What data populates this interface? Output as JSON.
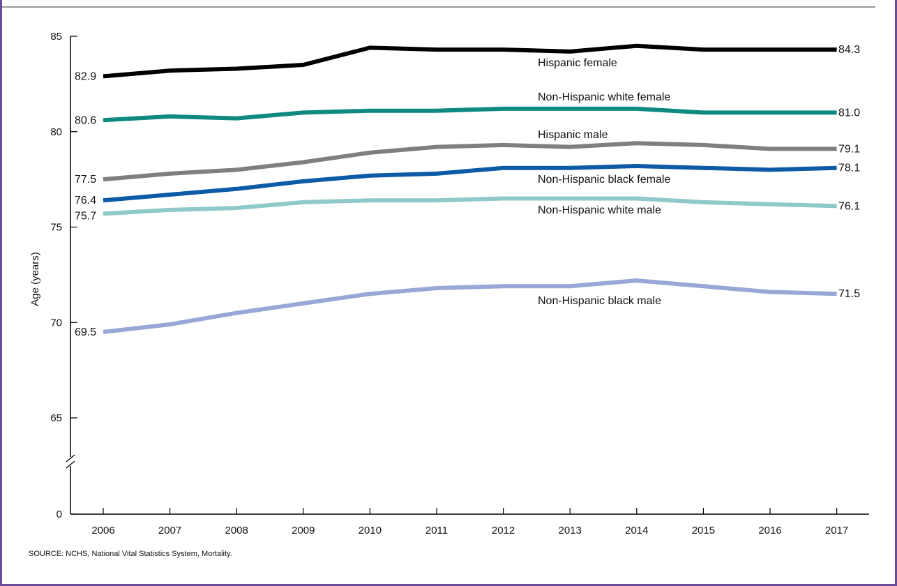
{
  "chart_data": {
    "type": "line",
    "ylabel": "Age (years)",
    "xlabel": "",
    "x": [
      "2006",
      "2007",
      "2008",
      "2009",
      "2010",
      "2011",
      "2012",
      "2013",
      "2014",
      "2015",
      "2016",
      "2017"
    ],
    "yticks": [
      "0",
      "65",
      "70",
      "75",
      "80",
      "85"
    ],
    "ylim": [
      65,
      85
    ],
    "axis_break": true,
    "series": [
      {
        "name": "Hispanic female",
        "color": "#000000",
        "values": [
          82.9,
          83.2,
          83.3,
          83.5,
          84.4,
          84.3,
          84.3,
          84.2,
          84.5,
          84.3,
          84.3,
          84.3
        ],
        "start_label": "82.9",
        "end_label": "84.3"
      },
      {
        "name": "Non-Hispanic white female",
        "color": "#0e8a80",
        "values": [
          80.6,
          80.8,
          80.7,
          81.0,
          81.1,
          81.1,
          81.2,
          81.2,
          81.2,
          81.0,
          81.0,
          81.0
        ],
        "start_label": "80.6",
        "end_label": "81.0"
      },
      {
        "name": "Hispanic male",
        "color": "#7f7f7f",
        "values": [
          77.5,
          77.8,
          78.0,
          78.4,
          78.9,
          79.2,
          79.3,
          79.2,
          79.4,
          79.3,
          79.1,
          79.1
        ],
        "start_label": "77.5",
        "end_label": "79.1"
      },
      {
        "name": "Non-Hispanic black female",
        "color": "#0d5aa7",
        "values": [
          76.4,
          76.7,
          77.0,
          77.4,
          77.7,
          77.8,
          78.1,
          78.1,
          78.2,
          78.1,
          78.0,
          78.1
        ],
        "start_label": "76.4",
        "end_label": "78.1"
      },
      {
        "name": "Non-Hispanic white male",
        "color": "#8fc9c9",
        "values": [
          75.7,
          75.9,
          76.0,
          76.3,
          76.4,
          76.4,
          76.5,
          76.5,
          76.5,
          76.3,
          76.2,
          76.1
        ],
        "start_label": "75.7",
        "end_label": "76.1"
      },
      {
        "name": "Non-Hispanic black male",
        "color": "#98a7d6",
        "values": [
          69.5,
          69.9,
          70.5,
          71.0,
          71.5,
          71.8,
          71.9,
          71.9,
          72.2,
          71.9,
          71.6,
          71.5
        ],
        "start_label": "69.5",
        "end_label": "71.5"
      }
    ]
  },
  "source": "SOURCE: NCHS, National Vital Statistics System, Mortality."
}
